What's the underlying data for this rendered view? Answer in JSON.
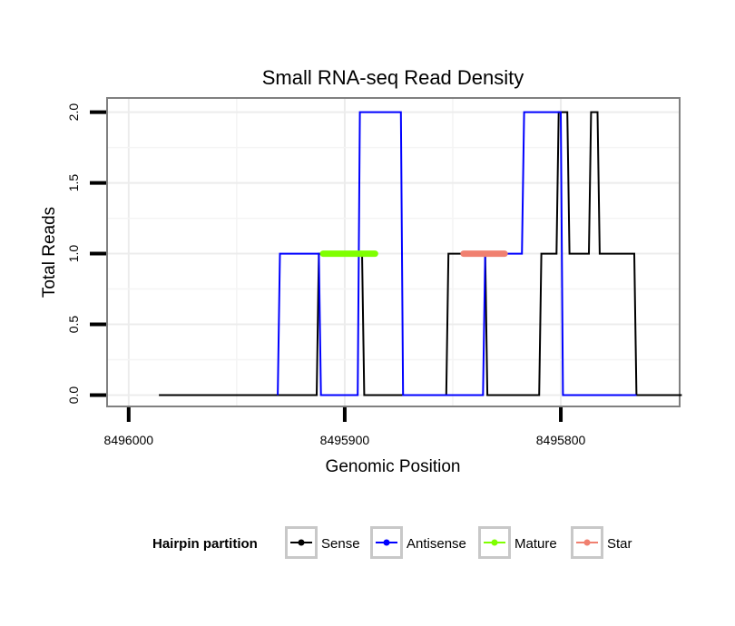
{
  "chart_data": {
    "type": "line",
    "title": "Small RNA-seq Read Density",
    "xlabel": "Genomic Position",
    "ylabel": "Total Reads",
    "xlim": [
      8496010,
      8495745
    ],
    "ylim": [
      -0.08,
      2.1
    ],
    "x_reversed": true,
    "x_ticks": [
      8496000,
      8495900,
      8495800
    ],
    "x_tick_labels": [
      "8496000",
      "8495900",
      "8495800"
    ],
    "y_ticks": [
      0,
      0.5,
      1,
      1.5,
      2
    ],
    "y_tick_labels": [
      "0.0",
      "0.5",
      "1.0",
      "1.5",
      "2.0"
    ],
    "grid": true,
    "legend": {
      "title": "Hairpin partition",
      "position": "bottom",
      "entries": [
        {
          "label": "Sense",
          "color": "#000000"
        },
        {
          "label": "Antisense",
          "color": "#0000ff"
        },
        {
          "label": "Mature",
          "color": "#7fff00"
        },
        {
          "label": "Star",
          "color": "#f08070"
        }
      ]
    },
    "series": [
      {
        "name": "Sense",
        "color": "#000000",
        "x": [
          8495986,
          8495913,
          8495912,
          8495892,
          8495891,
          8495853,
          8495852,
          8495835,
          8495834,
          8495810,
          8495809,
          8495802,
          8495801,
          8495797,
          8495796,
          8495787,
          8495786,
          8495783,
          8495782,
          8495782,
          8495781,
          8495766,
          8495765,
          8495744
        ],
        "y": [
          0,
          0,
          1,
          1,
          0,
          0,
          1,
          1,
          0,
          0,
          1,
          1,
          2,
          2,
          1,
          1,
          2,
          2,
          1,
          1,
          1,
          1,
          0,
          0
        ]
      },
      {
        "name": "Antisense",
        "color": "#0000ff",
        "x": [
          8495931,
          8495930,
          8495912,
          8495911,
          8495894,
          8495893,
          8495874,
          8495873,
          8495844,
          8495843,
          8495836,
          8495835,
          8495818,
          8495817,
          8495800,
          8495799,
          8495765
        ],
        "y": [
          0,
          1,
          1,
          0,
          0,
          2,
          2,
          0,
          0,
          0,
          0,
          1,
          1,
          2,
          2,
          0,
          0
        ]
      },
      {
        "name": "Mature",
        "color": "#7fff00",
        "x": [
          8495910,
          8495886
        ],
        "y": [
          1,
          1
        ]
      },
      {
        "name": "Star",
        "color": "#f08070",
        "x": [
          8495845,
          8495826
        ],
        "y": [
          1,
          1
        ]
      }
    ]
  }
}
